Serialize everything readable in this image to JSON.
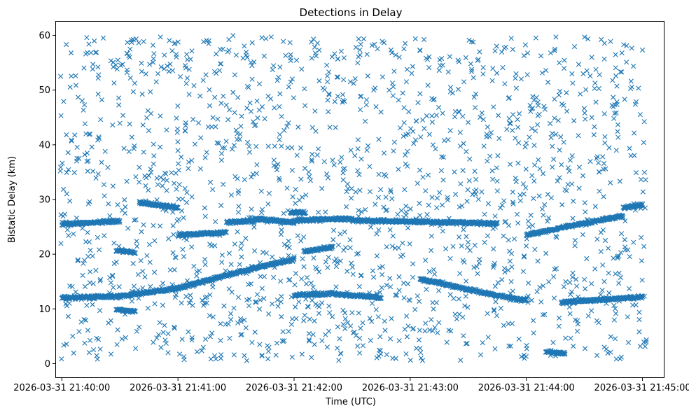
{
  "chart_data": {
    "type": "scatter",
    "title": "Detections in Delay",
    "xlabel": "Time (UTC)",
    "ylabel": "Bistatic Delay (km)",
    "marker": "x",
    "color": "#1f77b4",
    "xlim": [
      "2026-03-31 21:39:57",
      "2026-03-31 21:45:11"
    ],
    "ylim": [
      -2.5,
      62.5
    ],
    "x_ticks": [
      "2026-03-31 21:40:00",
      "2026-03-31 21:41:00",
      "2026-03-31 21:42:00",
      "2026-03-31 21:43:00",
      "2026-03-31 21:44:00",
      "2026-03-31 21:45:00"
    ],
    "y_ticks": [
      0,
      10,
      20,
      30,
      40,
      50,
      60
    ],
    "grid": false,
    "tracks": [
      {
        "from": "2026-03-31 21:40:00",
        "to": "2026-03-31 21:40:30",
        "delay_from": 12.0,
        "delay_to": 12.3
      },
      {
        "from": "2026-03-31 21:40:30",
        "to": "2026-03-31 21:41:00",
        "delay_from": 12.3,
        "delay_to": 13.8
      },
      {
        "from": "2026-03-31 21:41:00",
        "to": "2026-03-31 21:41:40",
        "delay_from": 13.8,
        "delay_to": 17.5
      },
      {
        "from": "2026-03-31 21:41:40",
        "to": "2026-03-31 21:42:00",
        "delay_from": 17.5,
        "delay_to": 19.0
      },
      {
        "from": "2026-03-31 21:42:00",
        "to": "2026-03-31 21:42:20",
        "delay_from": 12.5,
        "delay_to": 12.8
      },
      {
        "from": "2026-03-31 21:42:20",
        "to": "2026-03-31 21:42:45",
        "delay_from": 12.8,
        "delay_to": 12.0
      },
      {
        "from": "2026-03-31 21:43:05",
        "to": "2026-03-31 21:43:40",
        "delay_from": 15.5,
        "delay_to": 12.8
      },
      {
        "from": "2026-03-31 21:43:40",
        "to": "2026-03-31 21:44:00",
        "delay_from": 12.8,
        "delay_to": 11.5
      },
      {
        "from": "2026-03-31 21:44:18",
        "to": "2026-03-31 21:45:00",
        "delay_from": 11.2,
        "delay_to": 12.2
      },
      {
        "from": "2026-03-31 21:40:28",
        "to": "2026-03-31 21:40:38",
        "delay_from": 9.8,
        "delay_to": 9.6
      },
      {
        "from": "2026-03-31 21:40:28",
        "to": "2026-03-31 21:40:38",
        "delay_from": 20.8,
        "delay_to": 20.2
      },
      {
        "from": "2026-03-31 21:40:40",
        "to": "2026-03-31 21:41:00",
        "delay_from": 29.4,
        "delay_to": 28.5
      },
      {
        "from": "2026-03-31 21:41:00",
        "to": "2026-03-31 21:41:25",
        "delay_from": 23.5,
        "delay_to": 24.0
      },
      {
        "from": "2026-03-31 21:40:00",
        "to": "2026-03-31 21:40:30",
        "delay_from": 25.5,
        "delay_to": 26.0
      },
      {
        "from": "2026-03-31 21:41:25",
        "to": "2026-03-31 21:41:40",
        "delay_from": 25.8,
        "delay_to": 26.2
      },
      {
        "from": "2026-03-31 21:41:40",
        "to": "2026-03-31 21:42:00",
        "delay_from": 26.5,
        "delay_to": 25.8
      },
      {
        "from": "2026-03-31 21:41:58",
        "to": "2026-03-31 21:42:06",
        "delay_from": 27.6,
        "delay_to": 27.6
      },
      {
        "from": "2026-03-31 21:42:05",
        "to": "2026-03-31 21:42:20",
        "delay_from": 20.5,
        "delay_to": 21.3
      },
      {
        "from": "2026-03-31 21:42:00",
        "to": "2026-03-31 21:42:30",
        "delay_from": 26.2,
        "delay_to": 26.5
      },
      {
        "from": "2026-03-31 21:42:30",
        "to": "2026-03-31 21:43:45",
        "delay_from": 26.2,
        "delay_to": 25.6
      },
      {
        "from": "2026-03-31 21:44:00",
        "to": "2026-03-31 21:44:20",
        "delay_from": 23.5,
        "delay_to": 25.0
      },
      {
        "from": "2026-03-31 21:44:20",
        "to": "2026-03-31 21:44:50",
        "delay_from": 25.0,
        "delay_to": 27.0
      },
      {
        "from": "2026-03-31 21:44:50",
        "to": "2026-03-31 21:45:00",
        "delay_from": 28.5,
        "delay_to": 29.0
      },
      {
        "from": "2026-03-31 21:44:10",
        "to": "2026-03-31 21:44:20",
        "delay_from": 2.2,
        "delay_to": 1.8
      }
    ],
    "scatter_region": {
      "from": "2026-03-31 21:39:59",
      "to": "2026-03-31 21:45:02",
      "delay_min": 0.5,
      "delay_max": 60.0
    }
  }
}
